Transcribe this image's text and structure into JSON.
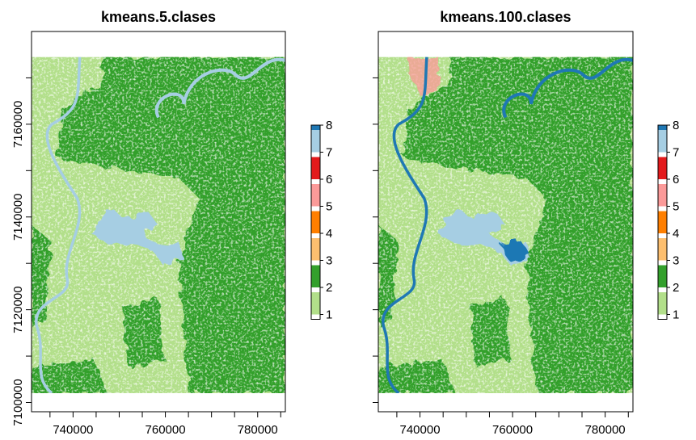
{
  "chart_data": [
    {
      "type": "heatmap",
      "title": "kmeans.5.clases",
      "x_ticks": [
        "740000",
        "760000",
        "780000"
      ],
      "y_ticks": [
        "7100000",
        "7120000",
        "7140000",
        "7160000"
      ],
      "xlim": [
        731000,
        786000
      ],
      "ylim": [
        7098000,
        7180000
      ],
      "data_extent": {
        "x": [
          731000,
          786000
        ],
        "y": [
          7102000,
          7174500
        ]
      },
      "legend": {
        "values": [
          "1",
          "2",
          "3",
          "4",
          "5",
          "6",
          "7",
          "8"
        ]
      },
      "classes_present": [
        "1",
        "2",
        "7"
      ]
    },
    {
      "type": "heatmap",
      "title": "kmeans.100.clases",
      "x_ticks": [
        "740000",
        "760000",
        "780000"
      ],
      "y_ticks": [
        "7100000",
        "7120000",
        "7140000",
        "7160000"
      ],
      "xlim": [
        731000,
        786000
      ],
      "ylim": [
        7098000,
        7180000
      ],
      "data_extent": {
        "x": [
          731000,
          786000
        ],
        "y": [
          7102000,
          7174500
        ]
      },
      "legend": {
        "values": [
          "1",
          "2",
          "3",
          "4",
          "5",
          "6",
          "7",
          "8"
        ]
      },
      "classes_present": [
        "1",
        "2",
        "5",
        "7",
        "8"
      ]
    }
  ],
  "palette": {
    "1": "#b2df8a",
    "2": "#33a02c",
    "3": "#fdbf6f",
    "4": "#ff7f00",
    "5": "#fb9a99",
    "6": "#e31a1c",
    "7": "#a6cee3",
    "8": "#1f78b4"
  }
}
